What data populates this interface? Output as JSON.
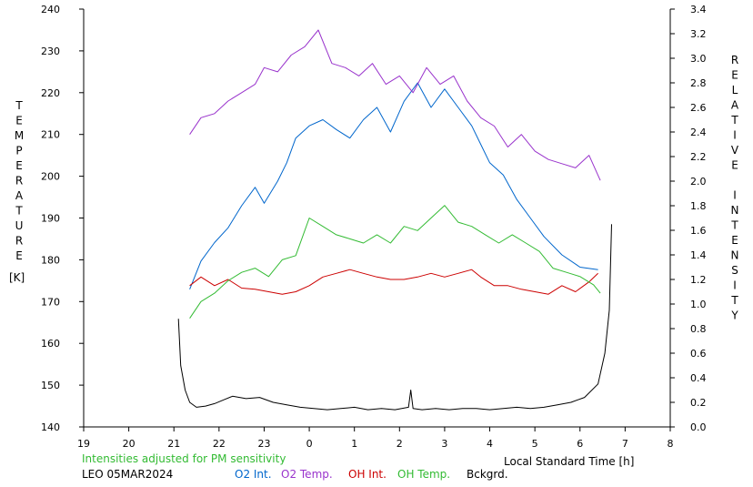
{
  "chart_data": {
    "type": "line",
    "left_axis_title_letters": [
      "T",
      "E",
      "M",
      "P",
      "E",
      "R",
      "A",
      "T",
      "U",
      "R",
      "E"
    ],
    "left_axis_unit": "[K]",
    "right_axis_title_letters": [
      "R",
      "E",
      "L",
      "A",
      "T",
      "I",
      "V",
      "E",
      "",
      "I",
      "N",
      "T",
      "E",
      "N",
      "S",
      "I",
      "T",
      "Y"
    ],
    "xlabel": "Local Standard Time [h]",
    "x_tick_labels": [
      "19",
      "20",
      "21",
      "22",
      "23",
      "0",
      "1",
      "2",
      "3",
      "4",
      "5",
      "6",
      "7",
      "8"
    ],
    "xlim": [
      19,
      32
    ],
    "ylim_left": [
      140,
      240
    ],
    "y_left_ticks": [
      140,
      150,
      160,
      170,
      180,
      190,
      200,
      210,
      220,
      230,
      240
    ],
    "ylim_right": [
      0.0,
      3.4
    ],
    "y_right_ticks": [
      "0.0",
      "0.2",
      "0.4",
      "0.6",
      "0.8",
      "1.0",
      "1.2",
      "1.4",
      "1.6",
      "1.8",
      "2.0",
      "2.2",
      "2.4",
      "2.6",
      "2.8",
      "3.0",
      "3.2",
      "3.4"
    ],
    "note": "Intensities adjusted for PM sensitivity",
    "site_date": "LEO 05MAR2024",
    "legend": [
      {
        "label": "O2 Int.",
        "color": "#0066cc"
      },
      {
        "label": "O2 Temp.",
        "color": "#9933cc"
      },
      {
        "label": "OH Int.",
        "color": "#cc0000"
      },
      {
        "label": "OH Temp.",
        "color": "#33bb33"
      },
      {
        "label": "Bckgrd.",
        "color": "#000000"
      }
    ],
    "series": [
      {
        "name": "O2 Int.",
        "axis": "right",
        "color": "#0066cc",
        "x": [
          21.35,
          21.6,
          21.9,
          22.2,
          22.5,
          22.8,
          23.0,
          23.3,
          23.5,
          23.7,
          24.0,
          24.3,
          24.6,
          24.9,
          25.2,
          25.5,
          25.8,
          26.1,
          26.4,
          26.7,
          27.0,
          27.3,
          27.6,
          27.8,
          28.0,
          28.3,
          28.6,
          28.9,
          29.2,
          29.6,
          30.0,
          30.4
        ],
        "y": [
          1.12,
          1.35,
          1.5,
          1.62,
          1.8,
          1.95,
          1.82,
          2.0,
          2.15,
          2.35,
          2.45,
          2.5,
          2.42,
          2.35,
          2.5,
          2.6,
          2.4,
          2.65,
          2.8,
          2.6,
          2.75,
          2.6,
          2.45,
          2.3,
          2.15,
          2.05,
          1.85,
          1.7,
          1.55,
          1.4,
          1.3,
          1.28
        ]
      },
      {
        "name": "O2 Temp.",
        "axis": "left",
        "color": "#9933cc",
        "x": [
          21.35,
          21.6,
          21.9,
          22.2,
          22.5,
          22.8,
          23.0,
          23.3,
          23.6,
          23.9,
          24.2,
          24.5,
          24.8,
          25.1,
          25.4,
          25.7,
          26.0,
          26.3,
          26.6,
          26.9,
          27.2,
          27.5,
          27.8,
          28.1,
          28.4,
          28.7,
          29.0,
          29.3,
          29.6,
          29.9,
          30.2,
          30.45
        ],
        "y": [
          210,
          214,
          215,
          218,
          220,
          222,
          226,
          225,
          229,
          231,
          235,
          227,
          226,
          224,
          227,
          222,
          224,
          220,
          226,
          222,
          224,
          218,
          214,
          212,
          207,
          210,
          206,
          204,
          203,
          202,
          205,
          199
        ]
      },
      {
        "name": "OH Int.",
        "axis": "right",
        "color": "#cc0000",
        "x": [
          21.35,
          21.6,
          21.9,
          22.2,
          22.5,
          22.8,
          23.1,
          23.4,
          23.7,
          24.0,
          24.3,
          24.6,
          24.9,
          25.2,
          25.5,
          25.8,
          26.1,
          26.4,
          26.7,
          27.0,
          27.3,
          27.6,
          27.8,
          28.1,
          28.4,
          28.7,
          29.0,
          29.3,
          29.6,
          29.9,
          30.2,
          30.4
        ],
        "y": [
          1.15,
          1.22,
          1.15,
          1.2,
          1.13,
          1.12,
          1.1,
          1.08,
          1.1,
          1.15,
          1.22,
          1.25,
          1.28,
          1.25,
          1.22,
          1.2,
          1.2,
          1.22,
          1.25,
          1.22,
          1.25,
          1.28,
          1.22,
          1.15,
          1.15,
          1.12,
          1.1,
          1.08,
          1.15,
          1.1,
          1.18,
          1.25
        ]
      },
      {
        "name": "OH Temp.",
        "axis": "left",
        "color": "#33bb33",
        "x": [
          21.35,
          21.6,
          21.9,
          22.2,
          22.5,
          22.8,
          23.1,
          23.4,
          23.7,
          24.0,
          24.3,
          24.6,
          24.9,
          25.2,
          25.5,
          25.8,
          26.1,
          26.4,
          26.7,
          27.0,
          27.3,
          27.6,
          27.9,
          28.2,
          28.5,
          28.8,
          29.1,
          29.4,
          29.7,
          30.0,
          30.3,
          30.45
        ],
        "y": [
          166,
          170,
          172,
          175,
          177,
          178,
          176,
          180,
          181,
          190,
          188,
          186,
          185,
          184,
          186,
          184,
          188,
          187,
          190,
          193,
          189,
          188,
          186,
          184,
          186,
          184,
          182,
          178,
          177,
          176,
          174,
          172
        ]
      },
      {
        "name": "Bckgrd.",
        "axis": "right",
        "color": "#000000",
        "x": [
          21.1,
          21.15,
          21.25,
          21.35,
          21.5,
          21.7,
          21.9,
          22.1,
          22.3,
          22.6,
          22.9,
          23.2,
          23.5,
          23.8,
          24.1,
          24.4,
          24.7,
          25.0,
          25.3,
          25.6,
          25.9,
          26.2,
          26.25,
          26.3,
          26.5,
          26.8,
          27.1,
          27.4,
          27.7,
          28.0,
          28.3,
          28.6,
          28.9,
          29.2,
          29.5,
          29.8,
          30.1,
          30.4,
          30.55,
          30.65,
          30.7
        ],
        "y": [
          0.88,
          0.5,
          0.3,
          0.2,
          0.16,
          0.17,
          0.19,
          0.22,
          0.25,
          0.23,
          0.24,
          0.2,
          0.18,
          0.16,
          0.15,
          0.14,
          0.15,
          0.16,
          0.14,
          0.15,
          0.14,
          0.16,
          0.3,
          0.15,
          0.14,
          0.15,
          0.14,
          0.15,
          0.15,
          0.14,
          0.15,
          0.16,
          0.15,
          0.16,
          0.18,
          0.2,
          0.24,
          0.35,
          0.6,
          0.95,
          1.65
        ]
      }
    ]
  }
}
